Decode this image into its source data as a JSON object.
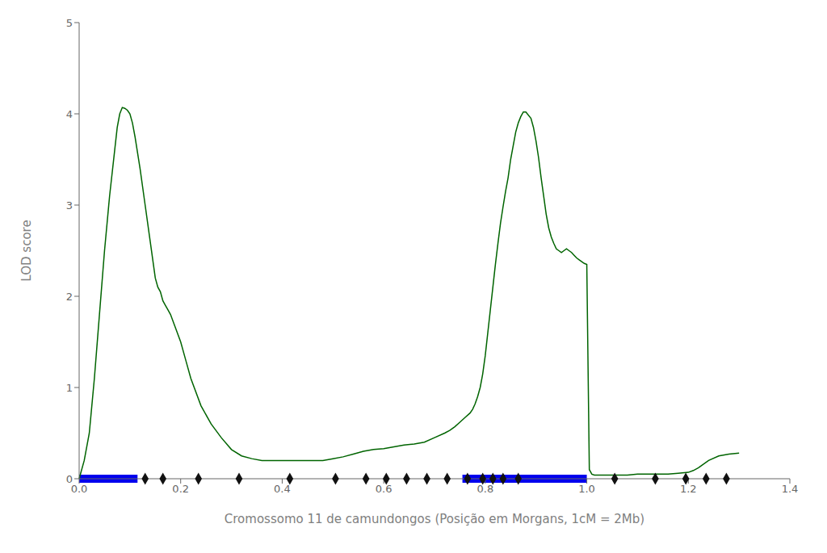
{
  "chart_data": {
    "type": "line",
    "xlabel": "Cromossomo 11 de camundongos (Posição em Morgans,  1cM = 2Mb)",
    "ylabel": "LOD score",
    "xlim": [
      0,
      1.4
    ],
    "ylim": [
      0,
      5
    ],
    "xticks": [
      {
        "value": 0,
        "label": "0.0"
      },
      0.2,
      0.4,
      0.6,
      0.8,
      {
        "value": 1.0,
        "label": "1.0"
      },
      1.2,
      1.4
    ],
    "yticks": [
      0,
      1,
      2,
      3,
      4,
      5
    ],
    "grid": false,
    "series": [
      {
        "type": "line",
        "color": "#006400",
        "x": [
          0.0,
          0.01,
          0.02,
          0.03,
          0.04,
          0.05,
          0.06,
          0.07,
          0.075,
          0.08,
          0.085,
          0.09,
          0.095,
          0.1,
          0.105,
          0.11,
          0.12,
          0.13,
          0.14,
          0.15,
          0.155,
          0.16,
          0.165,
          0.17,
          0.175,
          0.18,
          0.19,
          0.2,
          0.21,
          0.22,
          0.24,
          0.26,
          0.28,
          0.3,
          0.32,
          0.34,
          0.36,
          0.38,
          0.4,
          0.42,
          0.44,
          0.46,
          0.48,
          0.5,
          0.52,
          0.54,
          0.56,
          0.58,
          0.6,
          0.62,
          0.64,
          0.66,
          0.68,
          0.7,
          0.72,
          0.73,
          0.74,
          0.75,
          0.76,
          0.77,
          0.775,
          0.78,
          0.785,
          0.79,
          0.795,
          0.8,
          0.805,
          0.81,
          0.815,
          0.82,
          0.825,
          0.83,
          0.835,
          0.84,
          0.845,
          0.85,
          0.855,
          0.86,
          0.865,
          0.87,
          0.875,
          0.88,
          0.89,
          0.895,
          0.9,
          0.905,
          0.91,
          0.915,
          0.92,
          0.925,
          0.93,
          0.935,
          0.94,
          0.945,
          0.95,
          0.955,
          0.96,
          0.965,
          0.97,
          0.975,
          0.98,
          0.985,
          0.99,
          0.995,
          1.0,
          1.005,
          1.01,
          1.015,
          1.02,
          1.03,
          1.04,
          1.06,
          1.08,
          1.1,
          1.12,
          1.14,
          1.16,
          1.18,
          1.2,
          1.21,
          1.22,
          1.23,
          1.24,
          1.26,
          1.28,
          1.3
        ],
        "values": [
          0.0,
          0.2,
          0.5,
          1.1,
          1.8,
          2.5,
          3.1,
          3.6,
          3.85,
          4.0,
          4.07,
          4.06,
          4.04,
          4.0,
          3.9,
          3.75,
          3.4,
          3.0,
          2.6,
          2.2,
          2.1,
          2.05,
          1.95,
          1.9,
          1.85,
          1.8,
          1.65,
          1.5,
          1.3,
          1.1,
          0.8,
          0.6,
          0.45,
          0.32,
          0.25,
          0.22,
          0.2,
          0.2,
          0.2,
          0.2,
          0.2,
          0.2,
          0.2,
          0.22,
          0.24,
          0.27,
          0.3,
          0.32,
          0.33,
          0.35,
          0.37,
          0.38,
          0.4,
          0.45,
          0.5,
          0.53,
          0.57,
          0.62,
          0.67,
          0.72,
          0.76,
          0.82,
          0.9,
          1.0,
          1.15,
          1.35,
          1.6,
          1.85,
          2.1,
          2.35,
          2.58,
          2.8,
          2.98,
          3.15,
          3.3,
          3.5,
          3.65,
          3.8,
          3.9,
          3.97,
          4.02,
          4.02,
          3.95,
          3.85,
          3.7,
          3.52,
          3.3,
          3.1,
          2.9,
          2.75,
          2.65,
          2.58,
          2.52,
          2.5,
          2.48,
          2.5,
          2.52,
          2.5,
          2.48,
          2.45,
          2.42,
          2.4,
          2.38,
          2.36,
          2.35,
          0.1,
          0.05,
          0.04,
          0.04,
          0.04,
          0.04,
          0.04,
          0.04,
          0.05,
          0.05,
          0.05,
          0.05,
          0.06,
          0.07,
          0.09,
          0.12,
          0.16,
          0.2,
          0.25,
          0.27,
          0.28
        ]
      },
      {
        "type": "bar",
        "color": "#0000EE",
        "x": [
          0.0,
          0.755
        ],
        "widths": [
          0.115,
          0.245
        ]
      },
      {
        "type": "scatter",
        "color": "#111111",
        "marker": "diamond",
        "x": [
          0.13,
          0.165,
          0.235,
          0.315,
          0.415,
          0.505,
          0.565,
          0.605,
          0.645,
          0.685,
          0.725,
          0.765,
          0.795,
          0.815,
          0.835,
          0.865,
          1.055,
          1.135,
          1.195,
          1.235,
          1.275
        ],
        "values": [
          0,
          0,
          0,
          0,
          0,
          0,
          0,
          0,
          0,
          0,
          0,
          0,
          0,
          0,
          0,
          0,
          0,
          0,
          0,
          0,
          0
        ]
      }
    ]
  }
}
